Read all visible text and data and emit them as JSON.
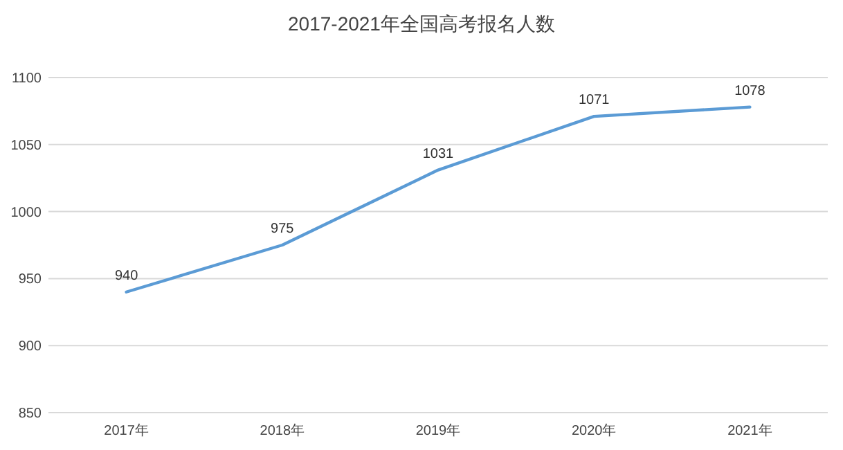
{
  "chart_data": {
    "type": "line",
    "title": "2017-2021年全国高考报名人数",
    "categories": [
      "2017年",
      "2018年",
      "2019年",
      "2020年",
      "2021年"
    ],
    "series": [
      {
        "color": "#5b9bd5",
        "values": [
          940,
          975,
          1031,
          1071,
          1078
        ]
      }
    ],
    "ylim": [
      850,
      1100
    ],
    "yticks": [
      850,
      900,
      950,
      1000,
      1050,
      1100
    ],
    "grid": "y",
    "data_labels": true,
    "marker": "none",
    "line_style": "solid"
  }
}
